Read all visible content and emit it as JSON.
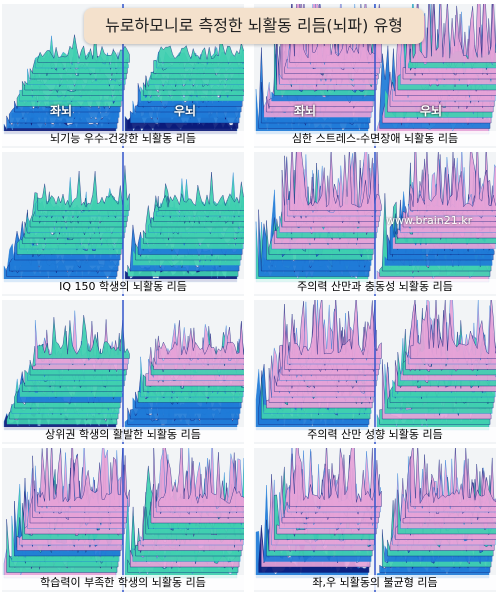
{
  "page_title": "뉴로하모니로 측정한 뇌활동 리듬(뇌파) 유형",
  "watermark": "www.brain21.kr",
  "panels": [
    {
      "caption": "뇌기능 우수-건강한 뇌활동 리듬",
      "left_label": "좌뇌",
      "right_label": "우뇌",
      "spike_level": 0.15,
      "tone": "blue"
    },
    {
      "caption": "심한 스트레스-수면장애 뇌활동 리듬",
      "left_label": "좌뇌",
      "right_label": "우뇌",
      "spike_level": 0.95,
      "tone": "pink"
    },
    {
      "caption": "IQ 150 학생의 뇌활동 리듬",
      "left_label": "",
      "right_label": "",
      "spike_level": 0.3,
      "tone": "blue"
    },
    {
      "caption": "주의력 산만과 충동성 뇌활동 리듬",
      "left_label": "",
      "right_label": "",
      "spike_level": 0.85,
      "tone": "pink"
    },
    {
      "caption": "상위권 학생의 활발한 뇌활동 리듬",
      "left_label": "",
      "right_label": "",
      "spike_level": 0.45,
      "tone": "mixed"
    },
    {
      "caption": "주의력 산만 성향 뇌활동 리듬",
      "left_label": "",
      "right_label": "",
      "spike_level": 0.7,
      "tone": "pink"
    },
    {
      "caption": "학습력이 부족한 학생의 뇌활동 리듬",
      "left_label": "",
      "right_label": "",
      "spike_level": 0.8,
      "tone": "mixed"
    },
    {
      "caption": "좌,우 뇌활동의 불균형 리듬",
      "left_label": "",
      "right_label": "",
      "spike_level": 0.75,
      "tone": "pink"
    }
  ],
  "colors": {
    "low": "#0a1a7a",
    "mid": "#1f7bd8",
    "high": "#3fd0b0",
    "peak": "#e6a3d8",
    "divider": "#3355cc"
  }
}
